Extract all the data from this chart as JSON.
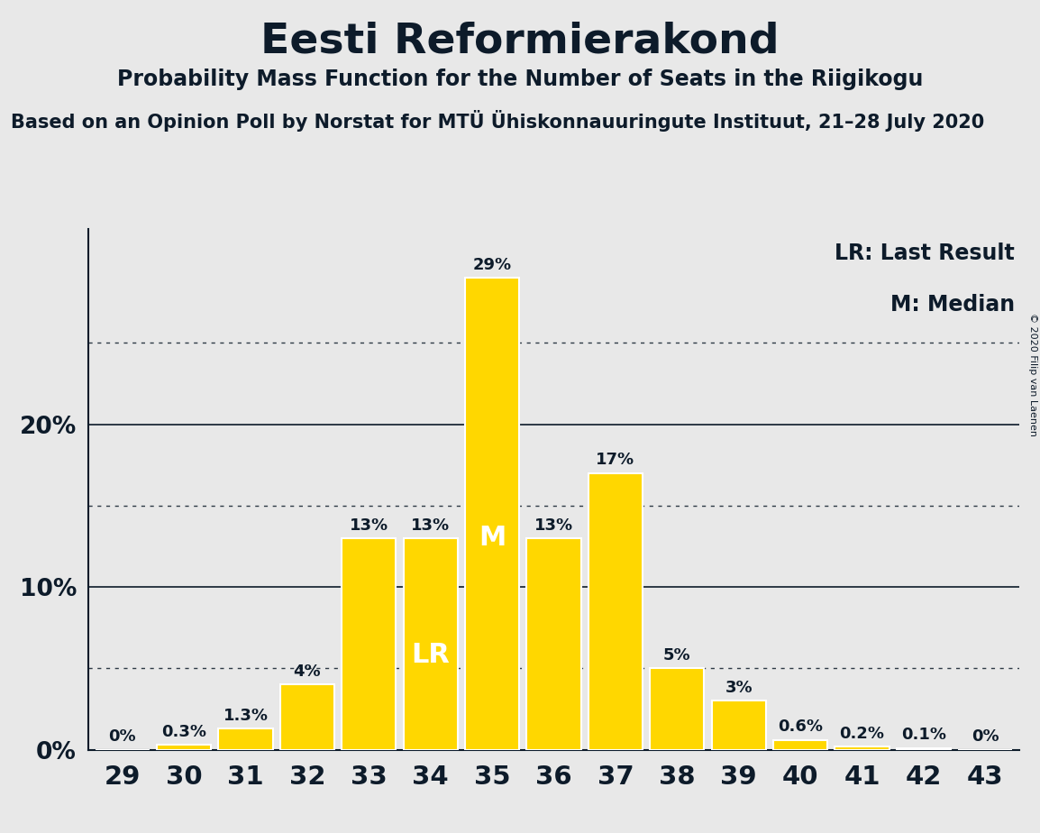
{
  "title": "Eesti Reformierakond",
  "subtitle": "Probability Mass Function for the Number of Seats in the Riigikogu",
  "source_line": "Based on an Opinion Poll by Norstat for MTÜ Ühiskonnauuringute Instituut, 21–28 July 2020",
  "copyright": "© 2020 Filip van Laenen",
  "categories": [
    29,
    30,
    31,
    32,
    33,
    34,
    35,
    36,
    37,
    38,
    39,
    40,
    41,
    42,
    43
  ],
  "values": [
    0.0,
    0.3,
    1.3,
    4.0,
    13.0,
    13.0,
    29.0,
    13.0,
    17.0,
    5.0,
    3.0,
    0.6,
    0.2,
    0.1,
    0.0
  ],
  "bar_color": "#FFD700",
  "bar_edgecolor": "#FFFFFF",
  "background_color": "#E8E8E8",
  "text_color": "#0D1B2A",
  "lr_seat": 34,
  "median_seat": 35,
  "yticks": [
    0,
    10,
    20
  ],
  "ytick_labels": [
    "0%",
    "10%",
    "20%"
  ],
  "dotted_gridlines": [
    5,
    15,
    25
  ],
  "solid_gridlines": [
    10,
    20
  ],
  "ylim": [
    0,
    32
  ],
  "legend_text_lr": "LR: Last Result",
  "legend_text_m": "M: Median",
  "bar_label_fontsize": 13,
  "title_fontsize": 34,
  "subtitle_fontsize": 17,
  "source_fontsize": 15,
  "ytick_fontsize": 19,
  "xtick_fontsize": 21,
  "legend_fontsize": 17,
  "lr_label_fontsize": 22,
  "m_label_fontsize": 22,
  "copyright_fontsize": 8
}
